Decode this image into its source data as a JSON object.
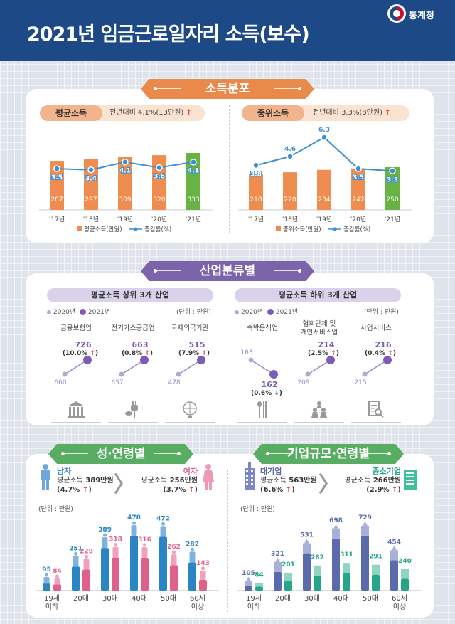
{
  "header": {
    "title": "2021년 임금근로일자리 소득(보수)",
    "logo_text": "통계청"
  },
  "sections": {
    "income": "소득분포",
    "industry": "산업분류별",
    "gender_age": "성·연령별",
    "firm_age": "기업규모·연령별"
  },
  "chart_data": [
    {
      "type": "bar",
      "title": "평균소득",
      "summary": "전년대비 4.1%(13만원)",
      "summary_arrow": "↑",
      "categories": [
        "'17년",
        "'18년",
        "'19년",
        "'20년",
        "'21년"
      ],
      "series": [
        {
          "name": "평균소득(만원)",
          "values": [
            287,
            297,
            309,
            320,
            333
          ]
        },
        {
          "name": "증감률(%)",
          "values": [
            3.5,
            3.4,
            4.1,
            3.6,
            4.1
          ]
        }
      ],
      "colors": {
        "bar": "#ee8d4f",
        "bar_highlight": "#67b343",
        "line": "#3d8fd1"
      }
    },
    {
      "type": "bar",
      "title": "중위소득",
      "summary": "전년대비 3.3%(8만원)",
      "summary_arrow": "↑",
      "categories": [
        "'17년",
        "'18년",
        "'19년",
        "'20년",
        "'21년"
      ],
      "series": [
        {
          "name": "중위소득(만원)",
          "values": [
            210,
            220,
            234,
            242,
            250
          ]
        },
        {
          "name": "증감률(%)",
          "values": [
            3.8,
            4.6,
            6.3,
            3.5,
            3.3
          ]
        }
      ],
      "colors": {
        "bar": "#ee8d4f",
        "bar_highlight": "#67b343",
        "line": "#3d8fd1"
      }
    },
    {
      "type": "line",
      "title": "평균소득 상위 3개 산업",
      "legend": [
        "2020년",
        "2021년"
      ],
      "unit": "(단위 : 만원)",
      "items": [
        {
          "name": "금융보험업",
          "v2020": 660,
          "v2021": 726,
          "change": "(10.0%",
          "dir": "up",
          "icon": "bank-icon"
        },
        {
          "name": "전기가스공급업",
          "v2020": 657,
          "v2021": 663,
          "change": "(0.8%",
          "dir": "up",
          "icon": "plug-icon"
        },
        {
          "name": "국제외국기관",
          "v2020": 478,
          "v2021": 515,
          "change": "(7.9%",
          "dir": "up",
          "icon": "globe-icon"
        }
      ]
    },
    {
      "type": "line",
      "title": "평균소득 하위 3개 산업",
      "legend": [
        "2020년",
        "2021년"
      ],
      "unit": "(단위 : 만원)",
      "items": [
        {
          "name": "숙박음식업",
          "v2020": 163,
          "v2021": 162,
          "change": "(0.6%",
          "dir": "down",
          "icon": "utensils-icon"
        },
        {
          "name": "협회단체 및\n개인서비스업",
          "v2020": 209,
          "v2021": 214,
          "change": "(2.5%",
          "dir": "up",
          "icon": "people-icon"
        },
        {
          "name": "사업서비스",
          "v2020": 215,
          "v2021": 216,
          "change": "(0.4%",
          "dir": "up",
          "icon": "document-search-icon"
        }
      ]
    },
    {
      "type": "bar",
      "title": "성·연령별",
      "unit": "(단위 : 만원)",
      "categories": [
        "19세\n이하",
        "20대",
        "30대",
        "40대",
        "50대",
        "60세\n이상"
      ],
      "series": [
        {
          "name": "남자",
          "values": [
            95,
            251,
            389,
            478,
            472,
            282
          ]
        },
        {
          "name": "여자",
          "values": [
            84,
            229,
            318,
            316,
            262,
            143
          ]
        }
      ],
      "colors": {
        "male": "#2a85c4",
        "female": "#e0608c"
      }
    },
    {
      "type": "bar",
      "title": "기업규모·연령별",
      "unit": "(단위 : 만원)",
      "categories": [
        "19세\n이하",
        "20대",
        "30대",
        "40대",
        "50대",
        "60세\n이상"
      ],
      "series": [
        {
          "name": "대기업",
          "values": [
            105,
            321,
            531,
            698,
            729,
            454
          ]
        },
        {
          "name": "중소기업",
          "values": [
            84,
            201,
            282,
            311,
            291,
            240
          ]
        }
      ],
      "colors": {
        "large": "#5b6aaa",
        "sme": "#25a58a"
      }
    }
  ],
  "gender": {
    "male": {
      "label": "남자",
      "prefix": "평균소득",
      "amount": "389만원",
      "change": "(4.7%",
      "close": ")"
    },
    "female": {
      "label": "여자",
      "prefix": "평균소득",
      "amount": "256만원",
      "change": "(3.7%",
      "close": ")"
    }
  },
  "firm": {
    "large": {
      "label": "대기업",
      "prefix": "평균소득",
      "amount": "563만원",
      "change": "(6.6%",
      "close": ")"
    },
    "sme": {
      "label": "중소기업",
      "prefix": "평균소득",
      "amount": "266만원",
      "change": "(2.9%",
      "close": ")"
    }
  },
  "arrow_up": "↑",
  "chevron": "〉"
}
